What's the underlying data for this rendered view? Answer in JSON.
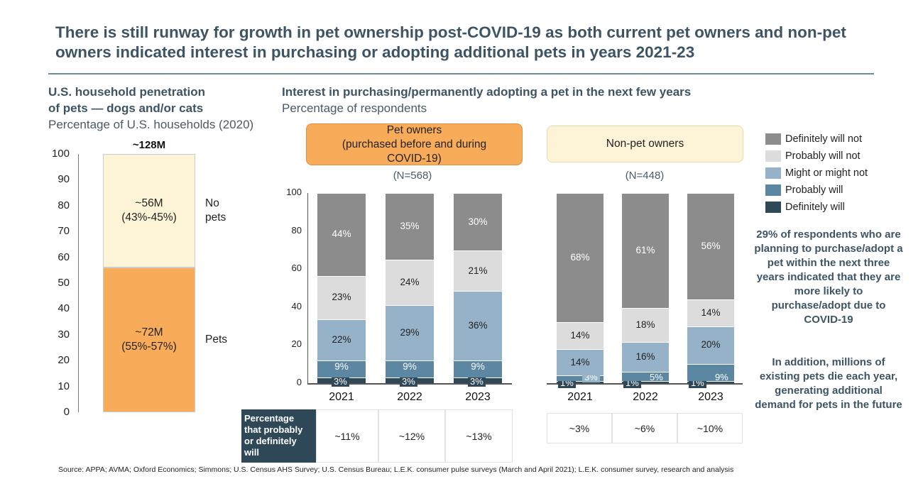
{
  "title": "There is still runway for growth in pet ownership post-COVID-19 as both current pet owners and non-pet owners indicated interest in purchasing or adopting additional pets in years 2021-23",
  "left": {
    "heading1": "U.S. household penetration",
    "heading2": "of pets — dogs and/or cats",
    "subtitle": "Percentage of U.S. households (2020)"
  },
  "middle": {
    "heading": "Interest in purchasing/permanently adopting a pet in the next few years",
    "subtitle": "Percentage of respondents"
  },
  "right_note": {
    "p1": "29% of respondents who are planning to purchase/adopt a pet within the next three years indicated that they are more likely to purchase/adopt due to COVID-19",
    "p2": "In addition, millions of existing pets die each year, generating additional demand for pets in the future"
  },
  "source": "Source: APPA; AVMA; Oxford Economics; Simmons; U.S. Census AHS Survey; U.S. Census Bureau; L.E.K. consumer pulse surveys (March and April 2021); L.E.K. consumer survey, research and analysis",
  "chart_data": [
    {
      "type": "bar",
      "stacked": true,
      "ylim": [
        0,
        100
      ],
      "yticks": [
        0,
        10,
        20,
        30,
        40,
        50,
        60,
        70,
        80,
        90,
        100
      ],
      "total_label": "~128M",
      "segments": [
        {
          "name": "Pets",
          "value": 56,
          "label": "~72M\n(55%-57%)",
          "color": "#f8ac5a"
        },
        {
          "name": "No pets",
          "value": 44,
          "label": "~56M\n(43%-45%)",
          "color": "#fdf3d6"
        }
      ],
      "legend_labels": [
        "Pets",
        "No\npets"
      ]
    },
    {
      "type": "bar",
      "stacked": true,
      "group": "Pet owners\n(purchased before and during\nCOVID-19)",
      "n": "(N=568)",
      "ylim": [
        0,
        100
      ],
      "yticks": [
        0,
        20,
        40,
        60,
        80,
        100
      ],
      "categories": [
        "2021",
        "2022",
        "2023"
      ],
      "series": [
        {
          "name": "Definitely will",
          "values": [
            3,
            3,
            3
          ]
        },
        {
          "name": "Probably will",
          "values": [
            9,
            9,
            9
          ]
        },
        {
          "name": "Might or might not",
          "values": [
            22,
            29,
            36
          ]
        },
        {
          "name": "Probably will not",
          "values": [
            23,
            24,
            21
          ]
        },
        {
          "name": "Definitely will not",
          "values": [
            44,
            35,
            30
          ]
        }
      ],
      "table_label": "Percentage that probably or definitely will",
      "table_values": [
        "~11%",
        "~12%",
        "~13%"
      ]
    },
    {
      "type": "bar",
      "stacked": true,
      "group": "Non-pet owners",
      "n": "(N=448)",
      "ylim": [
        0,
        100
      ],
      "categories": [
        "2021",
        "2022",
        "2023"
      ],
      "series": [
        {
          "name": "Definitely will",
          "values": [
            1,
            1,
            1
          ]
        },
        {
          "name": "Probably will",
          "values": [
            3,
            5,
            9
          ]
        },
        {
          "name": "Might or might not",
          "values": [
            14,
            16,
            20
          ]
        },
        {
          "name": "Probably will not",
          "values": [
            14,
            18,
            14
          ]
        },
        {
          "name": "Definitely will not",
          "values": [
            68,
            61,
            56
          ]
        }
      ],
      "table_values": [
        "~3%",
        "~6%",
        "~10%"
      ]
    }
  ],
  "legend": [
    {
      "label": "Definitely will not",
      "color": "#8c8c8c"
    },
    {
      "label": "Probably will not",
      "color": "#dcdcdc"
    },
    {
      "label": "Might or might not",
      "color": "#95b2c8"
    },
    {
      "label": "Probably will",
      "color": "#5b87a3"
    },
    {
      "label": "Definitely will",
      "color": "#2e4858"
    }
  ]
}
